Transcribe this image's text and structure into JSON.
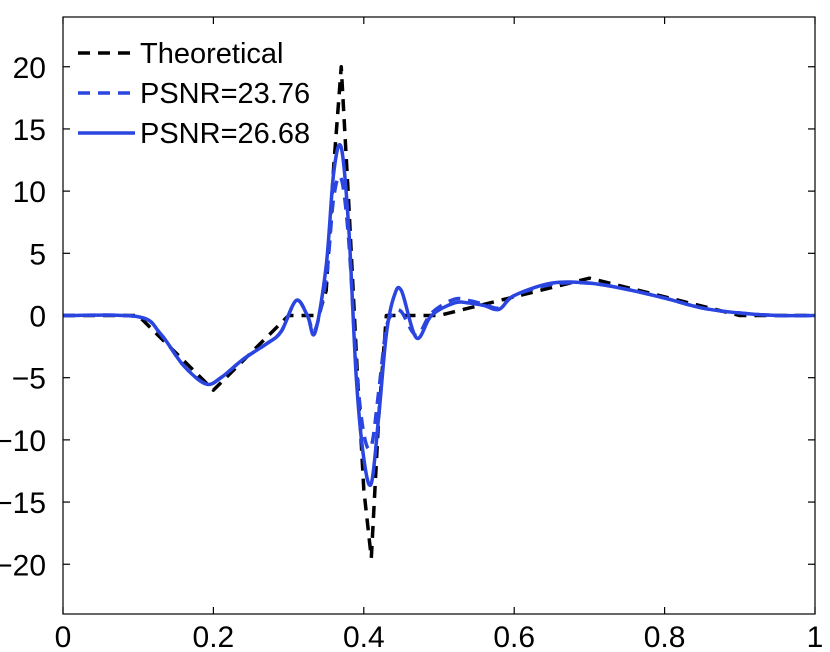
{
  "chart_data": {
    "type": "line",
    "title": "",
    "xlabel": "",
    "ylabel": "",
    "xlim": [
      0,
      1
    ],
    "ylim": [
      -24,
      24
    ],
    "xticks": [
      0,
      0.2,
      0.4,
      0.6,
      0.8,
      1
    ],
    "xtick_labels": [
      "0",
      "0.2",
      "0.4",
      "0.6",
      "0.8",
      "1"
    ],
    "yticks": [
      20,
      15,
      10,
      5,
      0,
      -5,
      -10,
      -15,
      -20
    ],
    "ytick_labels": [
      "20",
      "15",
      "10",
      "5",
      "0",
      "−5",
      "−10",
      "−15",
      "−20"
    ],
    "grid": false,
    "legend_position": "top-left",
    "series": [
      {
        "name": "Theoretical",
        "color": "#000000",
        "style": "dashed",
        "x": [
          0,
          0.09,
          0.1,
          0.2,
          0.3,
          0.33,
          0.34,
          0.35,
          0.36,
          0.37,
          0.38,
          0.39,
          0.4,
          0.41,
          0.42,
          0.43,
          0.5,
          0.6,
          0.7,
          0.8,
          0.9,
          1
        ],
        "y": [
          0,
          0,
          0,
          -6,
          0,
          0,
          0,
          2,
          12,
          20,
          9,
          -3,
          -14,
          -19.5,
          -8,
          0,
          0,
          1.5,
          3,
          1.5,
          0,
          0
        ]
      },
      {
        "name": "PSNR=23.76",
        "color": "#2a45e0",
        "style": "dashed",
        "x": [
          0,
          0.1,
          0.13,
          0.16,
          0.19,
          0.21,
          0.24,
          0.27,
          0.29,
          0.31,
          0.325,
          0.335,
          0.35,
          0.36,
          0.37,
          0.38,
          0.39,
          0.4,
          0.41,
          0.42,
          0.43,
          0.44,
          0.45,
          0.47,
          0.49,
          0.52,
          0.54,
          0.56,
          0.58,
          0.6,
          0.65,
          0.7,
          0.75,
          0.8,
          0.85,
          0.9,
          0.95,
          1
        ],
        "y": [
          0,
          -0.1,
          -1.5,
          -4,
          -5.5,
          -5,
          -3.5,
          -2.3,
          -1.3,
          1.2,
          0,
          -1.2,
          3,
          9.5,
          11,
          6,
          -4,
          -9.5,
          -10.5,
          -6,
          -1,
          0.2,
          0.3,
          -1.6,
          0.2,
          1.3,
          1.2,
          0.9,
          0.6,
          1.6,
          2.5,
          2.6,
          2.1,
          1.4,
          0.6,
          0.2,
          0,
          0
        ]
      },
      {
        "name": "PSNR=26.68",
        "color": "#2a45e0",
        "style": "solid",
        "x": [
          0,
          0.1,
          0.13,
          0.16,
          0.19,
          0.21,
          0.24,
          0.27,
          0.29,
          0.31,
          0.325,
          0.335,
          0.35,
          0.36,
          0.37,
          0.38,
          0.39,
          0.4,
          0.41,
          0.42,
          0.43,
          0.44,
          0.45,
          0.47,
          0.49,
          0.52,
          0.54,
          0.56,
          0.58,
          0.6,
          0.65,
          0.7,
          0.75,
          0.8,
          0.85,
          0.9,
          0.95,
          1
        ],
        "y": [
          0,
          -0.1,
          -1.5,
          -4,
          -5.5,
          -5,
          -3.5,
          -2.3,
          -1.3,
          1.2,
          0,
          -1.4,
          4,
          11.5,
          13.5,
          7,
          -5,
          -11.5,
          -13.5,
          -8,
          -1.5,
          1.5,
          2,
          -1.8,
          0,
          1,
          1,
          0.8,
          0.5,
          1.6,
          2.6,
          2.6,
          2.1,
          1.4,
          0.6,
          0.2,
          0,
          0
        ]
      }
    ]
  }
}
